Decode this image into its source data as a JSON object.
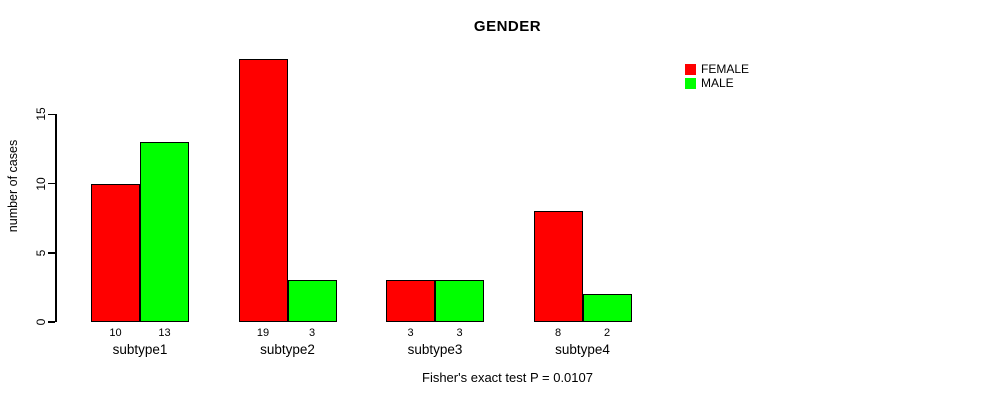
{
  "chart_data": {
    "type": "bar",
    "title": "GENDER",
    "ylabel": "number of cases",
    "xlabel": "",
    "categories": [
      "subtype1",
      "subtype2",
      "subtype3",
      "subtype4"
    ],
    "series": [
      {
        "name": "FEMALE",
        "color": "#ff0000",
        "values": [
          10,
          19,
          3,
          8
        ]
      },
      {
        "name": "MALE",
        "color": "#00ff00",
        "values": [
          13,
          3,
          3,
          2
        ]
      }
    ],
    "yticks": [
      0,
      5,
      10,
      15
    ],
    "ylim": [
      0,
      19
    ],
    "bar_value_labels": [
      [
        "10",
        "13"
      ],
      [
        "19",
        "3"
      ],
      [
        "3",
        "3"
      ],
      [
        "8",
        "2"
      ]
    ],
    "grid": "off",
    "legend_position": "upper-right",
    "caption": "Fisher's exact test P = 0.0107",
    "background": "#ffffff",
    "bar_border_color": "#000000"
  }
}
